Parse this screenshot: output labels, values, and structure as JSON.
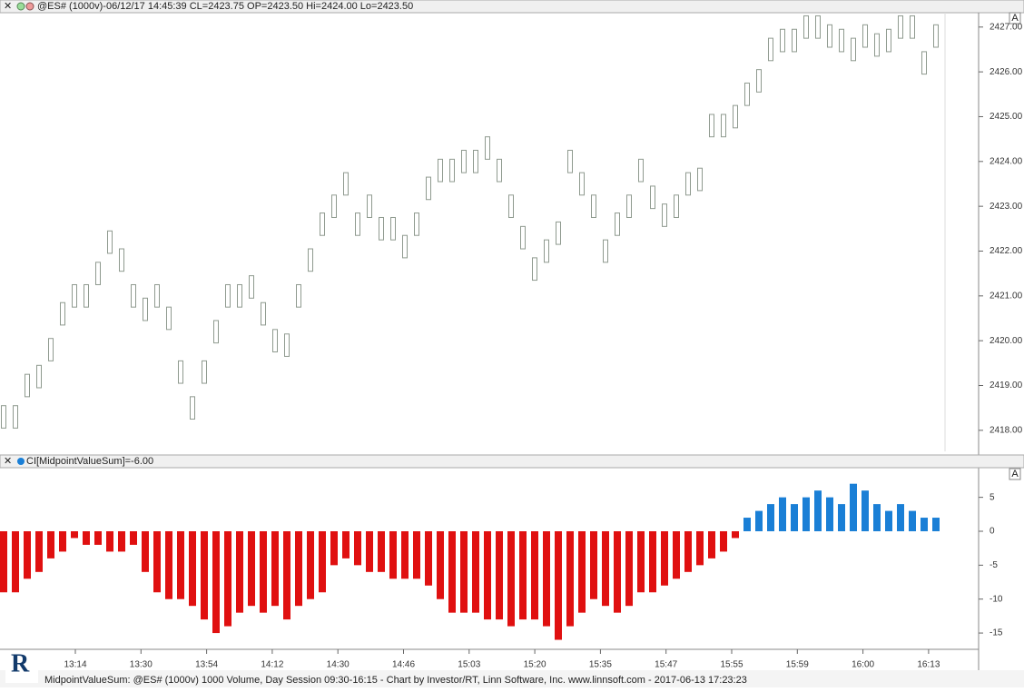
{
  "header": {
    "price_info": "@ES# (1000v)-06/12/17 14:45:39 CL=2423.75 OP=2423.50 Hi=2424.00 Lo=2423.50",
    "indicator_info": "CI[MidpointValueSum]=-6.00",
    "autoscale_button": "A",
    "footer": "MidpointValueSum: @ES# (1000v) 1000 Volume, Day Session 09:30-16:15 - Chart by Investor/RT, Linn Software, Inc. www.linnsoft.com - 2017-06-13 17:23:23"
  },
  "chart_data": [
    {
      "type": "ohlc",
      "color": "#8f9a8f",
      "high": [
        2418.55,
        2418.55,
        2419.25,
        2419.45,
        2420.05,
        2420.85,
        2421.25,
        2421.25,
        2421.75,
        2422.45,
        2422.05,
        2421.25,
        2420.95,
        2421.25,
        2420.75,
        2419.55,
        2418.75,
        2419.55,
        2420.45,
        2421.25,
        2421.25,
        2421.45,
        2420.85,
        2420.25,
        2420.15,
        2421.25,
        2422.05,
        2422.85,
        2423.25,
        2423.75,
        2422.85,
        2423.25,
        2422.75,
        2422.75,
        2422.35,
        2422.85,
        2423.65,
        2424.05,
        2424.05,
        2424.25,
        2424.25,
        2424.55,
        2424.05,
        2423.25,
        2422.55,
        2421.85,
        2422.25,
        2422.65,
        2424.25,
        2423.75,
        2423.25,
        2422.25,
        2422.85,
        2423.25,
        2424.05,
        2423.45,
        2423.05,
        2423.25,
        2423.75,
        2423.85,
        2425.05,
        2425.05,
        2425.25,
        2425.75,
        2426.05,
        2426.75,
        2426.95,
        2426.95,
        2427.25,
        2427.25,
        2427.05,
        2426.95,
        2426.75,
        2427.05,
        2426.85,
        2426.95,
        2427.25,
        2427.25,
        2426.45,
        2427.05
      ],
      "low": [
        2418.05,
        2418.05,
        2418.75,
        2418.95,
        2419.55,
        2420.35,
        2420.75,
        2420.75,
        2421.25,
        2421.95,
        2421.55,
        2420.75,
        2420.45,
        2420.75,
        2420.25,
        2419.05,
        2418.25,
        2419.05,
        2419.95,
        2420.75,
        2420.75,
        2420.95,
        2420.35,
        2419.75,
        2419.65,
        2420.75,
        2421.55,
        2422.35,
        2422.75,
        2423.25,
        2422.35,
        2422.75,
        2422.25,
        2422.25,
        2421.85,
        2422.35,
        2423.15,
        2423.55,
        2423.55,
        2423.75,
        2423.75,
        2424.05,
        2423.55,
        2422.75,
        2422.05,
        2421.35,
        2421.75,
        2422.15,
        2423.75,
        2423.25,
        2422.75,
        2421.75,
        2422.35,
        2422.75,
        2423.55,
        2422.95,
        2422.55,
        2422.75,
        2423.25,
        2423.35,
        2424.55,
        2424.55,
        2424.75,
        2425.25,
        2425.55,
        2426.25,
        2426.45,
        2426.45,
        2426.75,
        2426.75,
        2426.55,
        2426.45,
        2426.25,
        2426.55,
        2426.35,
        2426.45,
        2426.75,
        2426.75,
        2425.95,
        2426.55
      ],
      "ylim": [
        2417.47,
        2427.32
      ],
      "yticks": [
        {
          "value": 2418,
          "label": "2418.00"
        },
        {
          "value": 2419,
          "label": "2419.00"
        },
        {
          "value": 2420,
          "label": "2420.00"
        },
        {
          "value": 2421,
          "label": "2421.00"
        },
        {
          "value": 2422,
          "label": "2422.00"
        },
        {
          "value": 2423,
          "label": "2423.00"
        },
        {
          "value": 2424,
          "label": "2424.00"
        },
        {
          "value": 2425,
          "label": "2425.00"
        },
        {
          "value": 2426,
          "label": "2426.00"
        },
        {
          "value": 2427,
          "label": "2427.00"
        }
      ]
    },
    {
      "type": "bar",
      "positive_color": "#1a7fd6",
      "negative_color": "#e01010",
      "values": [
        -9,
        -9,
        -7,
        -6,
        -4,
        -3,
        -1,
        -2,
        -2,
        -3,
        -3,
        -2,
        -6,
        -9,
        -10,
        -10,
        -11,
        -13,
        -15,
        -14,
        -12,
        -11,
        -12,
        -11,
        -13,
        -11,
        -10,
        -9,
        -5,
        -4,
        -5,
        -6,
        -6,
        -7,
        -7,
        -7,
        -8,
        -10,
        -12,
        -12,
        -12,
        -13,
        -13,
        -14,
        -13,
        -13,
        -14,
        -16,
        -14,
        -12,
        -10,
        -11,
        -12,
        -11,
        -9,
        -9,
        -8,
        -7,
        -6,
        -5,
        -4,
        -3,
        -1,
        2,
        3,
        4,
        5,
        4,
        5,
        6,
        5,
        4,
        7,
        6,
        4,
        3,
        4,
        3,
        2,
        2
      ],
      "ylim": [
        -17.4,
        9.1
      ],
      "yticks": [
        5,
        0,
        -5,
        -10,
        -15
      ],
      "time_labels": [
        "13:14",
        "13:30",
        "13:54",
        "14:12",
        "14:30",
        "14:46",
        "15:03",
        "15:20",
        "15:35",
        "15:47",
        "15:55",
        "15:59",
        "16:00",
        "16:13"
      ]
    }
  ]
}
